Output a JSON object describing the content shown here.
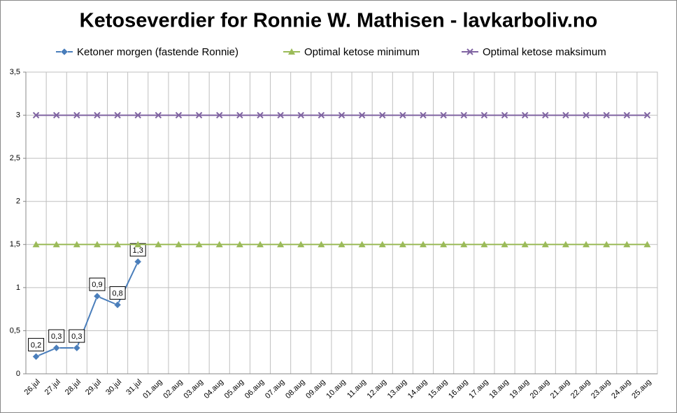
{
  "chart_data": {
    "type": "line",
    "title": "Ketoseverdier for Ronnie W. Mathisen - lavkarboliv.no",
    "categories": [
      "26.jul",
      "27.jul",
      "28.jul",
      "29.jul",
      "30.jul",
      "31.jul",
      "01.aug",
      "02.aug",
      "03.aug",
      "04.aug",
      "05.aug",
      "06.aug",
      "07.aug",
      "08.aug",
      "09.aug",
      "10.aug",
      "11.aug",
      "12.aug",
      "13.aug",
      "14.aug",
      "15.aug",
      "16.aug",
      "17.aug",
      "18.aug",
      "19.aug",
      "20.aug",
      "21.aug",
      "22.aug",
      "23.aug",
      "24.aug",
      "25.aug"
    ],
    "series": [
      {
        "name": "Ketoner morgen (fastende Ronnie)",
        "color": "#4a7ebb",
        "marker": "diamond",
        "values": [
          0.2,
          0.3,
          0.3,
          0.9,
          0.8,
          1.3,
          null,
          null,
          null,
          null,
          null,
          null,
          null,
          null,
          null,
          null,
          null,
          null,
          null,
          null,
          null,
          null,
          null,
          null,
          null,
          null,
          null,
          null,
          null,
          null,
          null
        ],
        "value_labels": [
          "0,2",
          "0,3",
          "0,3",
          "0,9",
          "0,8",
          "1,3",
          null,
          null,
          null,
          null,
          null,
          null,
          null,
          null,
          null,
          null,
          null,
          null,
          null,
          null,
          null,
          null,
          null,
          null,
          null,
          null,
          null,
          null,
          null,
          null,
          null
        ]
      },
      {
        "name": "Optimal ketose minimum",
        "color": "#9bbb59",
        "marker": "triangle",
        "values": [
          1.5,
          1.5,
          1.5,
          1.5,
          1.5,
          1.5,
          1.5,
          1.5,
          1.5,
          1.5,
          1.5,
          1.5,
          1.5,
          1.5,
          1.5,
          1.5,
          1.5,
          1.5,
          1.5,
          1.5,
          1.5,
          1.5,
          1.5,
          1.5,
          1.5,
          1.5,
          1.5,
          1.5,
          1.5,
          1.5,
          1.5
        ]
      },
      {
        "name": "Optimal ketose maksimum",
        "color": "#8064a2",
        "marker": "x",
        "values": [
          3,
          3,
          3,
          3,
          3,
          3,
          3,
          3,
          3,
          3,
          3,
          3,
          3,
          3,
          3,
          3,
          3,
          3,
          3,
          3,
          3,
          3,
          3,
          3,
          3,
          3,
          3,
          3,
          3,
          3,
          3
        ]
      }
    ],
    "ylim": [
      0,
      3.5
    ],
    "yticks": [
      0,
      {
        "value": 0.5,
        "label": "0,5"
      },
      1,
      {
        "value": 1.5,
        "label": "1,5"
      },
      2,
      {
        "value": 2.5,
        "label": "2,5"
      },
      3,
      {
        "value": 3.5,
        "label": "3,5"
      }
    ],
    "grid": true,
    "legend": "top"
  }
}
